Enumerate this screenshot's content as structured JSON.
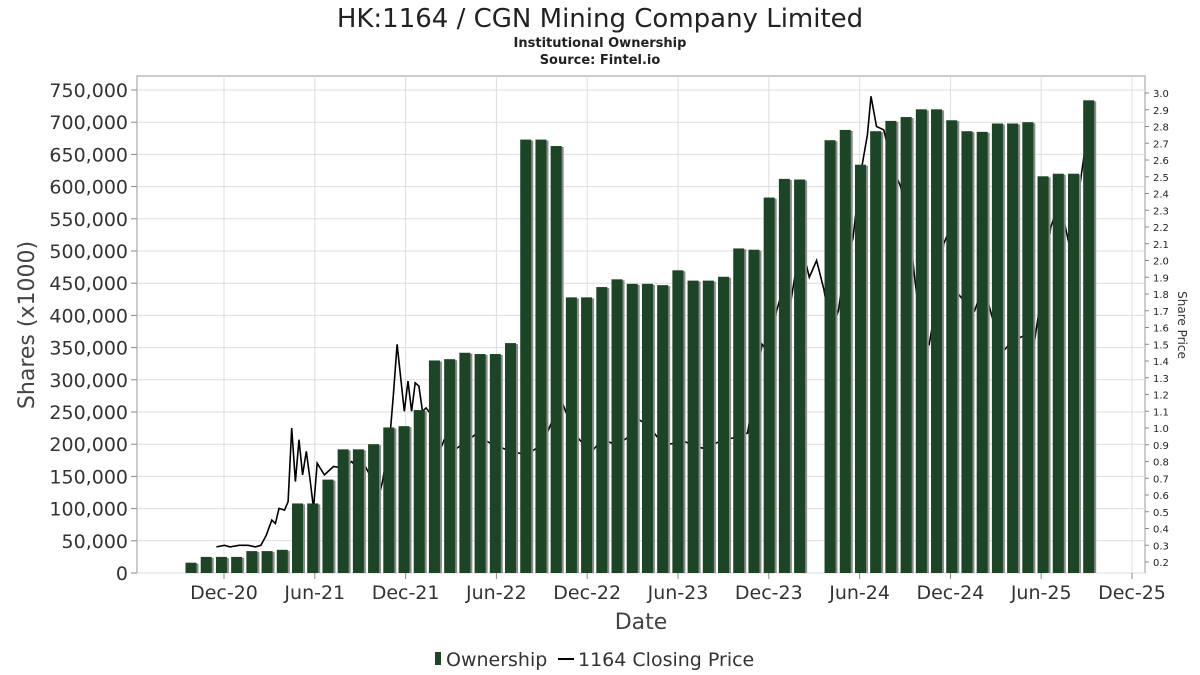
{
  "chart_data": {
    "type": "bar",
    "title": "HK:1164 / CGN Mining Company Limited",
    "subtitle": "Institutional Ownership",
    "source": "Source: Fintel.io",
    "xlabel": "Date",
    "ylabel": "Shares (x1000)",
    "y2label": "Share Price",
    "ylim": [
      0,
      750000
    ],
    "y2lim": [
      0.15,
      3.0
    ],
    "y_ticks": [
      "0",
      "50,000",
      "100,000",
      "150,000",
      "200,000",
      "250,000",
      "300,000",
      "350,000",
      "400,000",
      "450,000",
      "500,000",
      "550,000",
      "600,000",
      "650,000",
      "700,000",
      "750,000"
    ],
    "y2_ticks": [
      "0.2",
      "0.3",
      "0.4",
      "0.5",
      "0.6",
      "0.7",
      "0.8",
      "0.9",
      "1.0",
      "1.1",
      "1.2",
      "1.3",
      "1.4",
      "1.5",
      "1.6",
      "1.7",
      "1.8",
      "1.9",
      "2.0",
      "2.1",
      "2.2",
      "2.3",
      "2.4",
      "2.5",
      "2.6",
      "2.7",
      "2.8",
      "2.9",
      "3.0"
    ],
    "x_ticks": [
      "Dec-20",
      "Jun-21",
      "Dec-21",
      "Jun-22",
      "Dec-22",
      "Jun-23",
      "Dec-23",
      "Jun-24",
      "Dec-24",
      "Jun-25",
      "Dec-25"
    ],
    "grid": true,
    "legend_position": "bottom",
    "colors": {
      "bar": "#1b4524",
      "bar_shadow": "#8a8a8a",
      "line": "#000000",
      "grid": "#dddddd"
    },
    "series": [
      {
        "name": "Ownership",
        "type": "bar",
        "values": [
          16000,
          25000,
          25000,
          25000,
          34000,
          34000,
          36000,
          108000,
          108000,
          145000,
          192000,
          192000,
          200000,
          226000,
          228000,
          253000,
          330000,
          332000,
          342000,
          340000,
          340000,
          357000,
          673000,
          673000,
          663000,
          428000,
          428000,
          444000,
          456000,
          449000,
          449000,
          447000,
          470000,
          454000,
          454000,
          460000,
          504000,
          502000,
          583000,
          612000,
          611000,
          0,
          672000,
          688000,
          634000,
          686000,
          702000,
          708000,
          720000,
          720000,
          703000,
          686000,
          685000,
          698000,
          698000,
          700000,
          616000,
          620000,
          620000,
          734000
        ]
      },
      {
        "name": "1164 Closing Price",
        "type": "line",
        "points": [
          [
            2020.875,
            0.29
          ],
          [
            2020.92,
            0.3
          ],
          [
            2020.95,
            0.29
          ],
          [
            2021.0,
            0.3
          ],
          [
            2021.05,
            0.3
          ],
          [
            2021.09,
            0.29
          ],
          [
            2021.12,
            0.3
          ],
          [
            2021.15,
            0.36
          ],
          [
            2021.18,
            0.45
          ],
          [
            2021.2,
            0.43
          ],
          [
            2021.22,
            0.52
          ],
          [
            2021.25,
            0.51
          ],
          [
            2021.27,
            0.56
          ],
          [
            2021.29,
            1.0
          ],
          [
            2021.31,
            0.68
          ],
          [
            2021.33,
            0.93
          ],
          [
            2021.35,
            0.72
          ],
          [
            2021.37,
            0.86
          ],
          [
            2021.39,
            0.7
          ],
          [
            2021.41,
            0.52
          ],
          [
            2021.43,
            0.79
          ],
          [
            2021.47,
            0.72
          ],
          [
            2021.52,
            0.77
          ],
          [
            2021.58,
            0.76
          ],
          [
            2021.62,
            0.8
          ],
          [
            2021.65,
            0.76
          ],
          [
            2021.68,
            0.8
          ],
          [
            2021.72,
            0.72
          ],
          [
            2021.76,
            0.55
          ],
          [
            2021.79,
            0.68
          ],
          [
            2021.83,
            0.94
          ],
          [
            2021.85,
            1.2
          ],
          [
            2021.87,
            1.5
          ],
          [
            2021.89,
            1.3
          ],
          [
            2021.91,
            1.1
          ],
          [
            2021.93,
            1.28
          ],
          [
            2021.95,
            1.1
          ],
          [
            2021.97,
            1.27
          ],
          [
            2021.99,
            1.25
          ],
          [
            2022.01,
            1.1
          ],
          [
            2022.03,
            1.12
          ],
          [
            2022.05,
            1.09
          ],
          [
            2022.07,
            1.02
          ],
          [
            2022.1,
            0.85
          ],
          [
            2022.13,
            0.93
          ],
          [
            2022.2,
            0.88
          ],
          [
            2022.3,
            0.96
          ],
          [
            2022.4,
            0.9
          ],
          [
            2022.5,
            0.86
          ],
          [
            2022.58,
            0.84
          ],
          [
            2022.64,
            0.88
          ],
          [
            2022.68,
            0.93
          ],
          [
            2022.72,
            1.03
          ],
          [
            2022.78,
            1.15
          ],
          [
            2022.85,
            0.96
          ],
          [
            2022.9,
            0.9
          ],
          [
            2022.95,
            0.87
          ],
          [
            2023.0,
            0.93
          ],
          [
            2023.08,
            0.9
          ],
          [
            2023.15,
            0.95
          ],
          [
            2023.2,
            1.05
          ],
          [
            2023.25,
            1.02
          ],
          [
            2023.3,
            0.95
          ],
          [
            2023.35,
            0.9
          ],
          [
            2023.45,
            0.92
          ],
          [
            2023.55,
            0.88
          ],
          [
            2023.65,
            0.92
          ],
          [
            2023.75,
            0.95
          ],
          [
            2023.8,
            0.97
          ],
          [
            2023.85,
            1.3
          ],
          [
            2023.88,
            1.5
          ],
          [
            2023.92,
            1.45
          ],
          [
            2023.96,
            1.7
          ],
          [
            2024.0,
            1.85
          ],
          [
            2024.03,
            1.7
          ],
          [
            2024.06,
            1.9
          ],
          [
            2024.1,
            2.08
          ],
          [
            2024.14,
            1.9
          ],
          [
            2024.18,
            2.0
          ],
          [
            2024.22,
            1.83
          ],
          [
            2024.26,
            1.58
          ],
          [
            2024.3,
            1.7
          ],
          [
            2024.34,
            2.0
          ],
          [
            2024.38,
            2.13
          ],
          [
            2024.42,
            2.5
          ],
          [
            2024.46,
            2.75
          ],
          [
            2024.48,
            2.98
          ],
          [
            2024.51,
            2.8
          ],
          [
            2024.55,
            2.78
          ],
          [
            2024.6,
            2.55
          ],
          [
            2024.64,
            2.45
          ],
          [
            2024.68,
            2.3
          ],
          [
            2024.72,
            1.9
          ],
          [
            2024.76,
            1.55
          ],
          [
            2024.8,
            1.5
          ],
          [
            2024.84,
            1.75
          ],
          [
            2024.88,
            2.1
          ],
          [
            2024.92,
            2.2
          ],
          [
            2024.96,
            1.8
          ],
          [
            2025.0,
            1.75
          ],
          [
            2025.05,
            1.7
          ],
          [
            2025.1,
            1.85
          ],
          [
            2025.15,
            1.65
          ],
          [
            2025.2,
            1.45
          ],
          [
            2025.26,
            1.52
          ],
          [
            2025.32,
            1.55
          ],
          [
            2025.37,
            1.45
          ],
          [
            2025.42,
            1.8
          ],
          [
            2025.47,
            2.2
          ],
          [
            2025.52,
            2.35
          ],
          [
            2025.57,
            2.1
          ],
          [
            2025.6,
            2.15
          ],
          [
            2025.63,
            2.45
          ],
          [
            2025.66,
            2.68
          ],
          [
            2025.69,
            2.6
          ]
        ]
      }
    ]
  }
}
